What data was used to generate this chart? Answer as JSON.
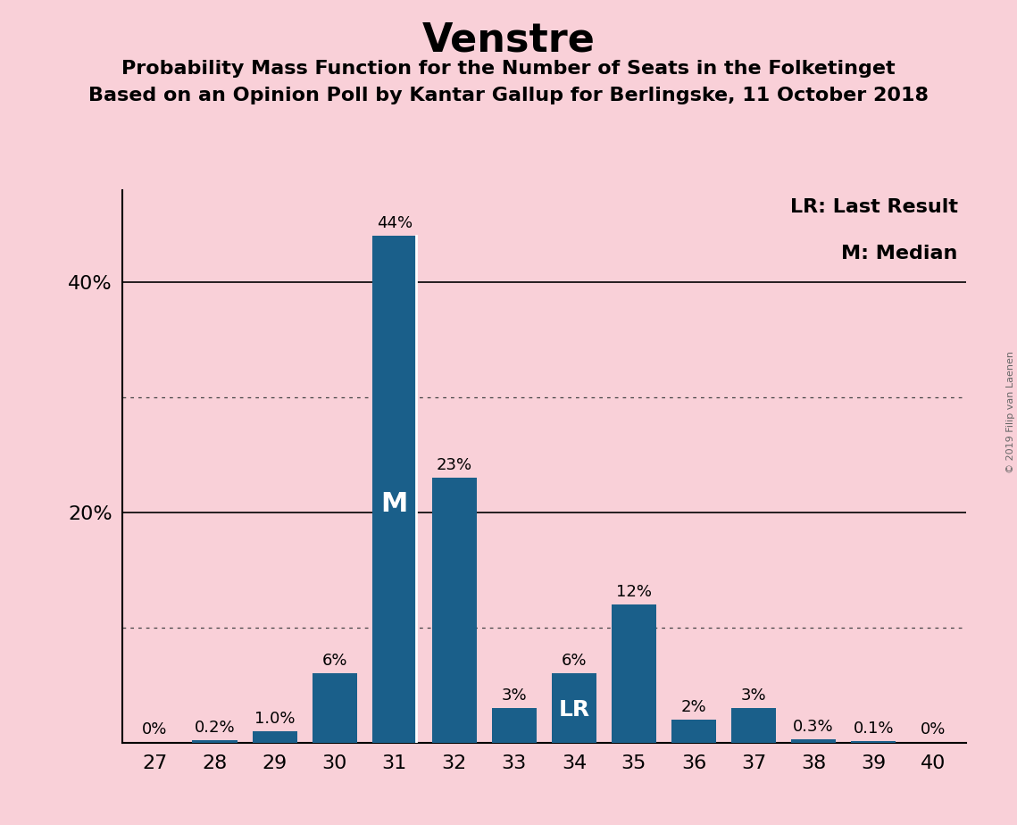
{
  "title": "Venstre",
  "subtitle1": "Probability Mass Function for the Number of Seats in the Folketinget",
  "subtitle2": "Based on an Opinion Poll by Kantar Gallup for Berlingske, 11 October 2018",
  "copyright": "© 2019 Filip van Laenen",
  "seats": [
    27,
    28,
    29,
    30,
    31,
    32,
    33,
    34,
    35,
    36,
    37,
    38,
    39,
    40
  ],
  "probabilities": [
    0.0,
    0.2,
    1.0,
    6.0,
    44.0,
    23.0,
    3.0,
    6.0,
    12.0,
    2.0,
    3.0,
    0.3,
    0.1,
    0.0
  ],
  "labels": [
    "0%",
    "0.2%",
    "1.0%",
    "6%",
    "44%",
    "23%",
    "3%",
    "6%",
    "12%",
    "2%",
    "3%",
    "0.3%",
    "0.1%",
    "0%"
  ],
  "bar_color": "#1a5f8a",
  "background_color": "#f9d0d8",
  "median_seat": 31,
  "last_result_seat": 34,
  "legend_lr": "LR: Last Result",
  "legend_m": "M: Median",
  "ylim": [
    0,
    48
  ],
  "dotted_lines": [
    10,
    30
  ],
  "solid_lines": [
    20,
    40
  ],
  "title_fontsize": 32,
  "subtitle_fontsize": 16,
  "tick_fontsize": 16,
  "label_fontsize": 13,
  "legend_fontsize": 16
}
